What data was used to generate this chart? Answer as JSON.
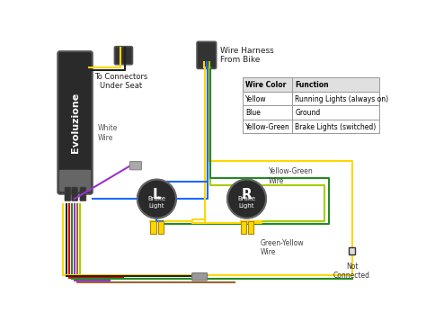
{
  "bg_color": "#ffffff",
  "table_headers": [
    "Wire Color",
    "Function"
  ],
  "table_rows": [
    [
      "Yellow",
      "Running Lights (always on)"
    ],
    [
      "Blue",
      "Ground"
    ],
    [
      "Yellow-Green",
      "Brake Lights (switched)"
    ]
  ],
  "evoluzione_label": "Evoluzione",
  "left_label": "To Connectors\nUnder Seat",
  "right_label": "Wire Harness\nFrom Bike",
  "white_wire_label": "White\nWire",
  "yellow_green_wire_label": "Yellow-Green\nWire",
  "green_yellow_wire_label": "Green-Yellow\nWire",
  "not_connected_label": "Not\nConnected",
  "wire_colors": {
    "yellow": "#FFD700",
    "blue": "#1a6aff",
    "green": "#228B22",
    "red": "#DD0000",
    "white": "#aaaaaa",
    "purple": "#9933cc",
    "brown": "#996633",
    "yellow_green": "#aacc00",
    "black": "#222222"
  },
  "device_color": "#2a2a2a",
  "brake_light_color": "#2a2a2a"
}
